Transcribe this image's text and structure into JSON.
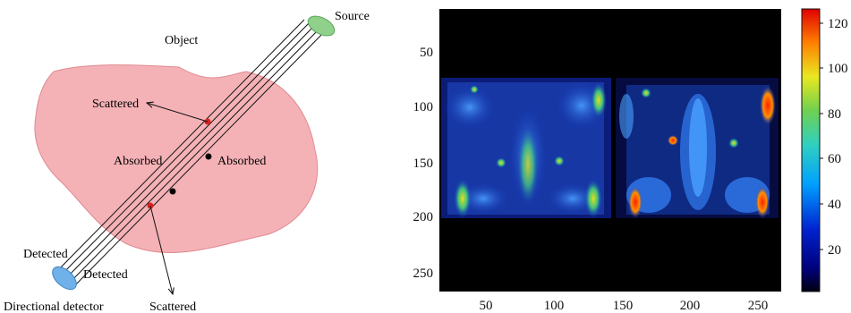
{
  "diagram": {
    "labels": {
      "source": "Source",
      "object": "Object",
      "scattered_top": "Scattered",
      "absorbed_left": "Absorbed",
      "absorbed_right": "Absorbed",
      "detected_top": "Detected",
      "detected_bottom": "Detected",
      "directional_detector": "Directional detector",
      "scattered_bottom": "Scattered"
    },
    "colors": {
      "object_fill": "#f4b2b6",
      "object_stroke": "#e08a90",
      "source_fill": "#8fd18b",
      "detector_fill": "#6fb1e8",
      "scatter_point": "#e02020",
      "absorb_point": "#000000"
    }
  },
  "image_panel": {
    "y_ticks": [
      "50",
      "100",
      "150",
      "200",
      "250"
    ],
    "x_ticks": [
      "50",
      "100",
      "150",
      "200",
      "250"
    ],
    "colorbar_ticks": [
      "20",
      "40",
      "60",
      "80",
      "100",
      "120"
    ],
    "colormap": "jet",
    "background": "#000000"
  }
}
